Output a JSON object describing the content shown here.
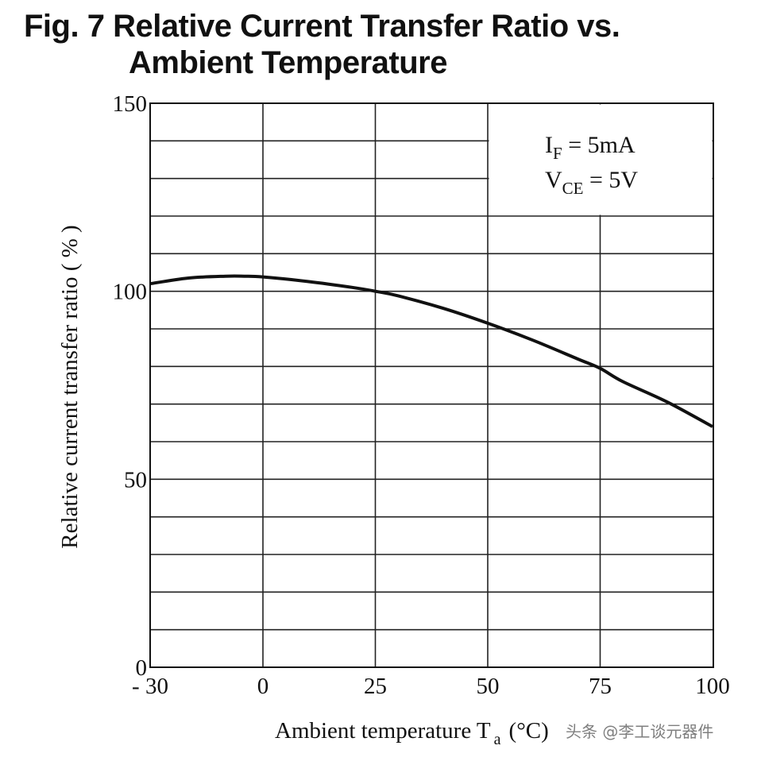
{
  "title_line1": "Fig. 7 Relative Current Transfer Ratio vs.",
  "title_line2": "Ambient Temperature",
  "watermark": "头条 @李工谈元器件",
  "chart_data": {
    "type": "line",
    "xlabel": "Ambient temperature T",
    "xlabel_sub": "a",
    "xlabel_unit": "(°C)",
    "ylabel": "Relative current transfer ratio ( % )",
    "xlim": [
      -30,
      100
    ],
    "ylim": [
      0,
      150
    ],
    "x_ticks": [
      -30,
      0,
      25,
      50,
      75,
      100
    ],
    "x_tick_labels": [
      "- 30",
      "0",
      "25",
      "50",
      "75",
      "100"
    ],
    "y_ticks": [
      0,
      50,
      100,
      150
    ],
    "y_tick_labels": [
      "0",
      "50",
      "100",
      "150"
    ],
    "grid": true,
    "x_grid": [
      0,
      25,
      50,
      75
    ],
    "y_grid_step": 10,
    "annotation": {
      "line1_main": "I",
      "line1_sub": "F",
      "line1_rest": " = 5mA",
      "line2_main": "V",
      "line2_sub": "CE",
      "line2_rest": " = 5V"
    },
    "series": [
      {
        "x": [
          -30,
          -20,
          -10,
          -5,
          0,
          10,
          20,
          25,
          30,
          40,
          50,
          60,
          70,
          75,
          80,
          90,
          100
        ],
        "y": [
          102,
          103.5,
          104,
          104,
          103.8,
          102.6,
          101,
          100,
          98.8,
          95.5,
          91.5,
          87,
          82,
          79.5,
          76,
          70.5,
          64
        ]
      }
    ]
  }
}
